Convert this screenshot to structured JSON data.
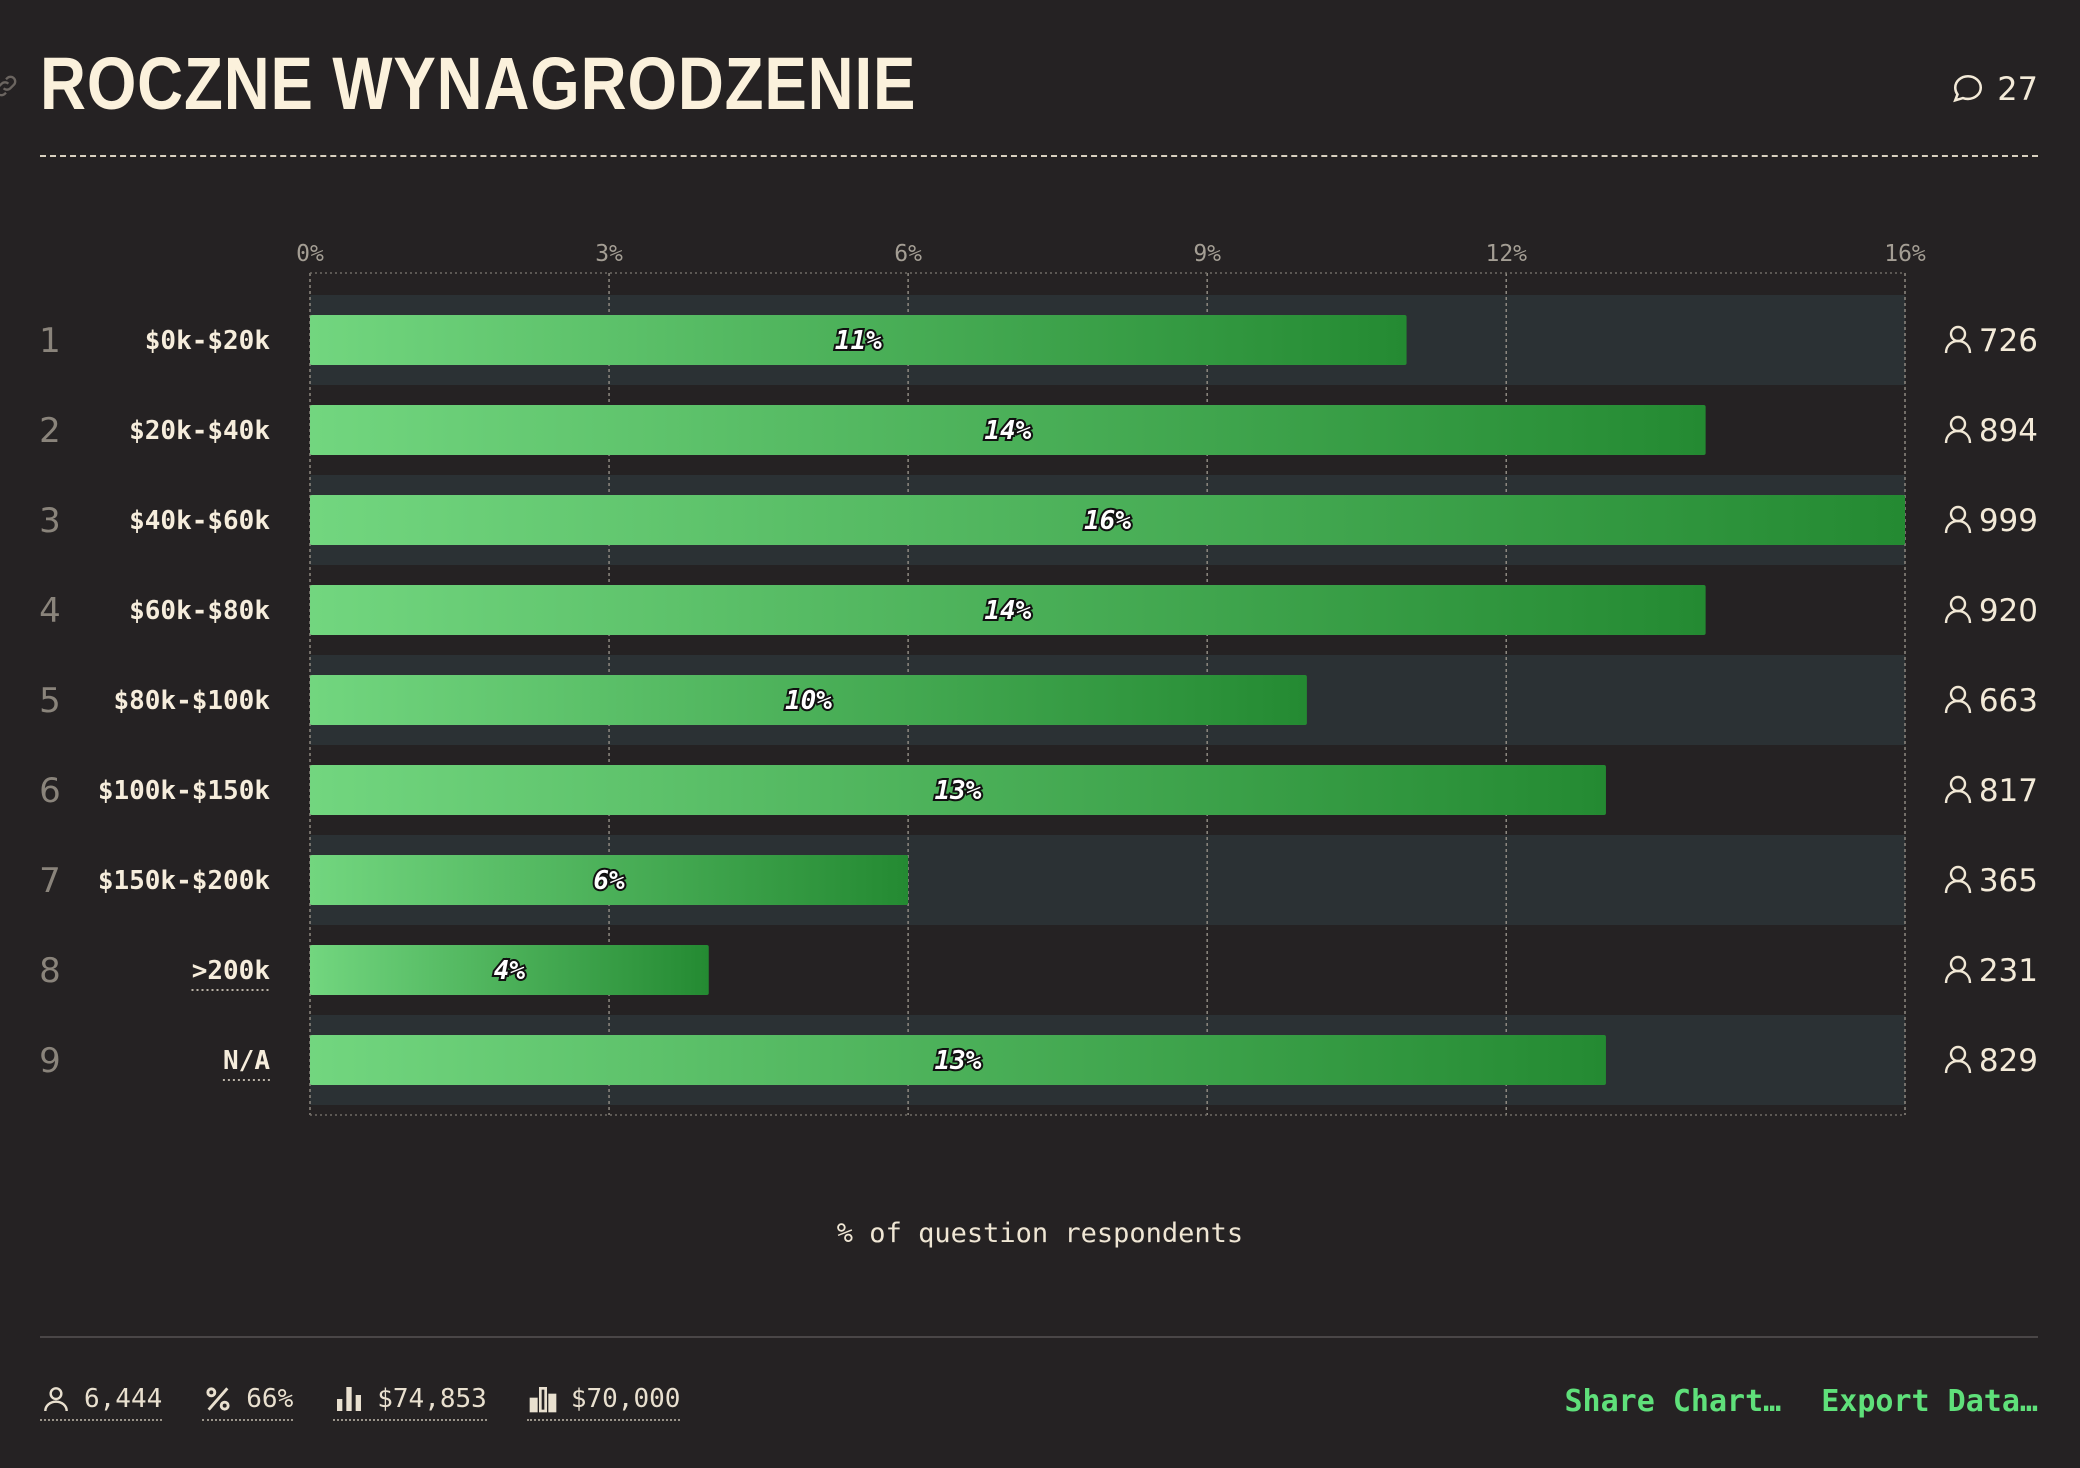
{
  "header": {
    "title": "ROCZNE WYNAGRODZENIE",
    "comment_count": "27"
  },
  "chart_data": {
    "type": "bar",
    "orientation": "horizontal",
    "title": "ROCZNE WYNAGRODZENIE",
    "xlabel": "% of question respondents",
    "ylabel": "",
    "xlim": [
      0,
      16
    ],
    "x_ticks": [
      "0%",
      "3%",
      "6%",
      "9%",
      "12%",
      "16%"
    ],
    "grid": true,
    "rows": [
      {
        "rank": "1",
        "label": "$0k-$20k",
        "value": 11,
        "value_label": "11%",
        "count": "726"
      },
      {
        "rank": "2",
        "label": "$20k-$40k",
        "value": 14,
        "value_label": "14%",
        "count": "894"
      },
      {
        "rank": "3",
        "label": "$40k-$60k",
        "value": 16,
        "value_label": "16%",
        "count": "999"
      },
      {
        "rank": "4",
        "label": "$60k-$80k",
        "value": 14,
        "value_label": "14%",
        "count": "920"
      },
      {
        "rank": "5",
        "label": "$80k-$100k",
        "value": 10,
        "value_label": "10%",
        "count": "663"
      },
      {
        "rank": "6",
        "label": "$100k-$150k",
        "value": 13,
        "value_label": "13%",
        "count": "817"
      },
      {
        "rank": "7",
        "label": "$150k-$200k",
        "value": 6,
        "value_label": "6%",
        "count": "365"
      },
      {
        "rank": "8",
        "label": ">200k",
        "value": 4,
        "value_label": "4%",
        "count": "231",
        "dotted_label": true
      },
      {
        "rank": "9",
        "label": "N/A",
        "value": 13,
        "value_label": "13%",
        "count": "829",
        "dotted_label": true
      }
    ],
    "colors": {
      "bar_start": "#72d67f",
      "bar_end": "#248a32",
      "row_stripe": "#2b3134"
    }
  },
  "footer": {
    "stats": [
      {
        "icon": "person-icon",
        "value": "6,444"
      },
      {
        "icon": "percent-icon",
        "value": "66%"
      },
      {
        "icon": "mean-chart-icon",
        "value": "$74,853"
      },
      {
        "icon": "median-chart-icon",
        "value": "$70,000"
      }
    ],
    "share_label": "Share Chart…",
    "export_label": "Export Data…"
  }
}
